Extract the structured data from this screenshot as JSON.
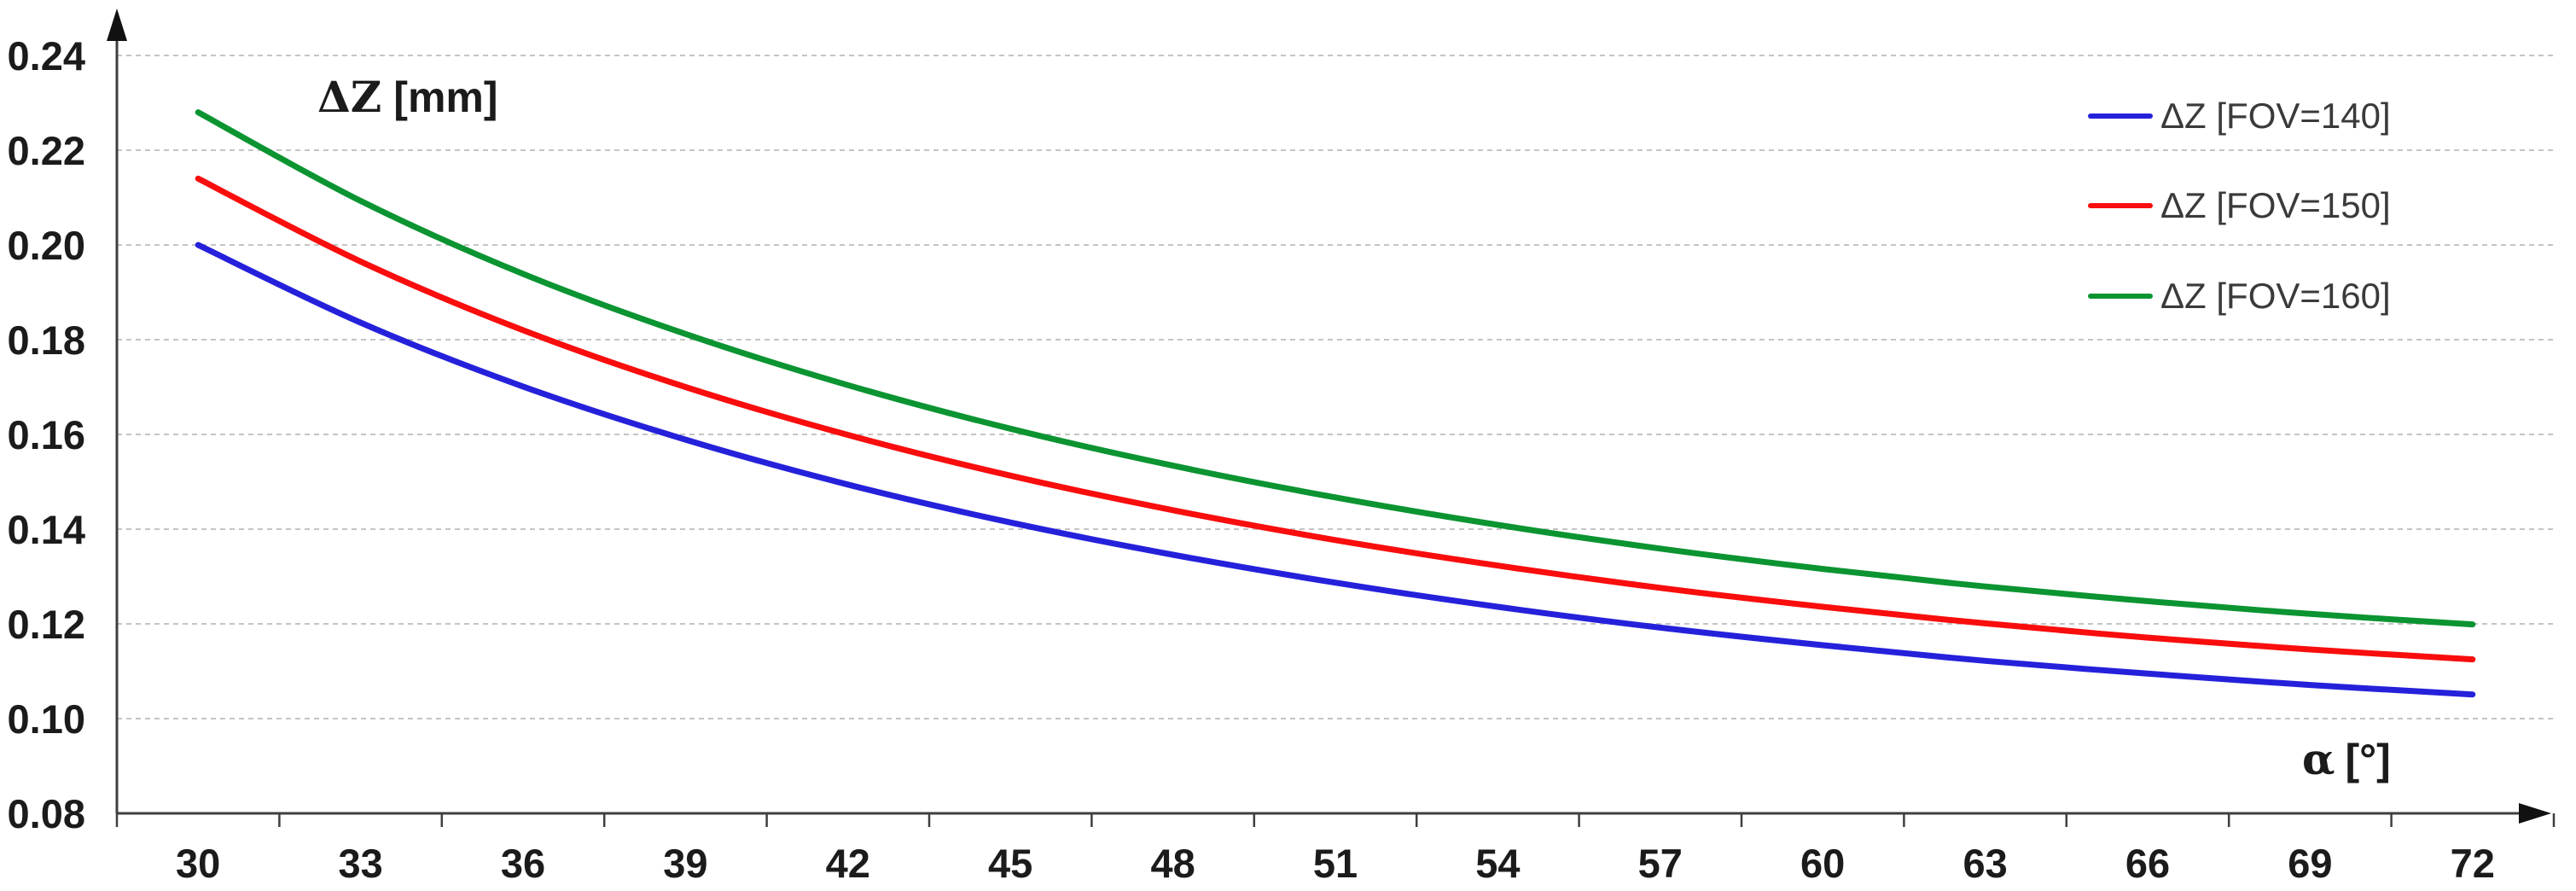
{
  "chart_data": {
    "type": "line",
    "title": "",
    "ylabel": "ΔZ [mm]",
    "ylabel_symbol": "ΔZ",
    "ylabel_unit": "[mm]",
    "xlabel": "α [°]",
    "xlabel_symbol": "α",
    "xlabel_unit": "[°]",
    "x": [
      30,
      33,
      36,
      39,
      42,
      45,
      48,
      51,
      54,
      57,
      60,
      63,
      66,
      69,
      72
    ],
    "x_tick_labels": [
      "30",
      "33",
      "36",
      "39",
      "42",
      "45",
      "48",
      "51",
      "54",
      "57",
      "60",
      "63",
      "66",
      "69",
      "72"
    ],
    "y_axis": {
      "min": 0.08,
      "max": 0.24,
      "step": 0.02,
      "tick_labels": [
        "0.24",
        "0.22",
        "0.20",
        "0.18",
        "0.16",
        "0.14",
        "0.12",
        "0.10",
        "0.08"
      ]
    },
    "grid": "horizontal-dotted",
    "legend_position": "top-right",
    "axis_color": "#3f3f3f",
    "gridline_color": "#c4c4c4",
    "tick_label_color": "#1b1b1b",
    "series": [
      {
        "name": "ΔZ [FOV=140]",
        "color": "#2521db",
        "values": [
          0.2,
          0.1836,
          0.1701,
          0.1589,
          0.1494,
          0.1414,
          0.1346,
          0.1287,
          0.1236,
          0.1192,
          0.1155,
          0.1122,
          0.1095,
          0.1071,
          0.1051
        ]
      },
      {
        "name": "ΔZ [FOV=150]",
        "color": "#f90d0d",
        "values": [
          0.214,
          0.1965,
          0.182,
          0.17,
          0.1599,
          0.1513,
          0.144,
          0.1377,
          0.1323,
          0.1276,
          0.1236,
          0.1201,
          0.1171,
          0.1146,
          0.1125
        ]
      },
      {
        "name": "ΔZ [FOV=160]",
        "color": "#0b9431",
        "values": [
          0.228,
          0.2093,
          0.1939,
          0.1812,
          0.1704,
          0.1612,
          0.1534,
          0.1467,
          0.1409,
          0.1359,
          0.1316,
          0.1279,
          0.1248,
          0.1221,
          0.1199
        ]
      }
    ]
  }
}
